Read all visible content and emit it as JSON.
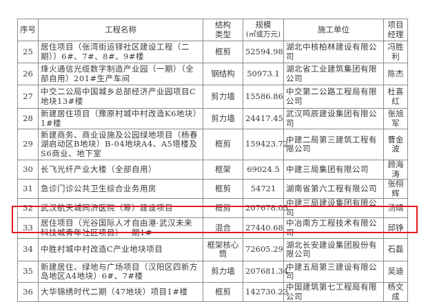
{
  "headers": [
    "序号",
    "工程名称",
    "结构类型",
    "规模(㎡或万元)",
    "施工单位",
    "项目经理"
  ],
  "header_lines": {
    "structure": [
      "结构",
      "类型"
    ],
    "scale": [
      "规模",
      "(㎡或万元)"
    ],
    "manager": [
      "项目",
      "经理"
    ]
  },
  "rows": [
    {
      "no": "25",
      "name": "居住项目（张湾街运铎社区建设工程（二期））6#、7#、8#、9#楼",
      "structure": "框剪",
      "scale": "52594.98",
      "contractor": "湖北中核柏林建设有限公司",
      "manager": "冯胜利"
    },
    {
      "no": "26",
      "name": "烽火通信光缆数字制造产业园（一期）（全部自用）201#生产车间",
      "structure": "钢结构",
      "scale": "50973.1",
      "contractor": "湖北省工业建筑集团有限公司",
      "manager": "陈杰"
    },
    {
      "no": "27",
      "name": "中交二公局中国城乡总部经济产业园项目C地块13#楼",
      "structure": "剪力墙",
      "scale": "15586.86",
      "contractor": "中交第二公路工程局有限公司",
      "manager": "杜喜红"
    },
    {
      "no": "28",
      "name": "新建居住项目（豫原村城中村改造K6地块）1#楼",
      "structure": "剪力墙",
      "scale": "24417.45",
      "contractor": "武汉鸣辰建设集团有限公司",
      "manager": "张旭军"
    },
    {
      "no": "29",
      "name": "新建商务、商业设施及公园绿地项目（杨春湖启动区B地块）B-04地块A4、A5塔楼及S6商业、地下室",
      "structure": "框剪",
      "scale": "159423.72",
      "contractor": "中建二局第三建筑工程有限公司",
      "manager": "曹金波"
    },
    {
      "no": "30",
      "name": "长飞光纤产业大楼（全部自用）",
      "structure": "框架",
      "scale": "69024.5",
      "contractor": "中建三局集团有限公司",
      "manager": "顾海涛"
    },
    {
      "no": "31",
      "name": "急诊门诊公共卫生综合业务用房",
      "structure": "框剪",
      "scale": "54721",
      "contractor": "湖南省第六工程有限公司",
      "manager": "张栩辉"
    },
    {
      "no": "32",
      "name": "武汉航天城同济医院（筹）建设项目",
      "structure": "框剪",
      "scale": "207678.05",
      "contractor": "中建三局建设集团有限公司",
      "manager": "汤靖"
    },
    {
      "no": "33",
      "name": "居住项目（光谷国际人才自由港·武汉未来科技城青年社区项目）一期1#",
      "structure": "混合",
      "scale": "27440.68",
      "contractor": "中冶南方工程技术有限公司",
      "manager": "邱铮"
    },
    {
      "no": "34",
      "name": "中胜村城中村改造C产业地块项目",
      "structure": "框架核心筒",
      "scale": "72605.29",
      "contractor": "湖北长安建设集团股份有限公司",
      "manager": "石磊"
    },
    {
      "no": "35",
      "name": "新建居住、绿地与广场项目（汉阳区四新方岛地区A4地块）6#、7#楼",
      "structure": "剪力墙",
      "scale": "207681.34",
      "contractor": "中建五局第三建设有限公司",
      "manager": "吴迪"
    },
    {
      "no": "36",
      "name": "大华锦绣时代二期（47地块）项目1#楼",
      "structure": "框剪",
      "scale": "142730.23",
      "contractor": "中国建筑第七工程局有限公司",
      "manager": "杨文成"
    }
  ],
  "highlight_color": "#e8141a",
  "highlighted_row": "33"
}
